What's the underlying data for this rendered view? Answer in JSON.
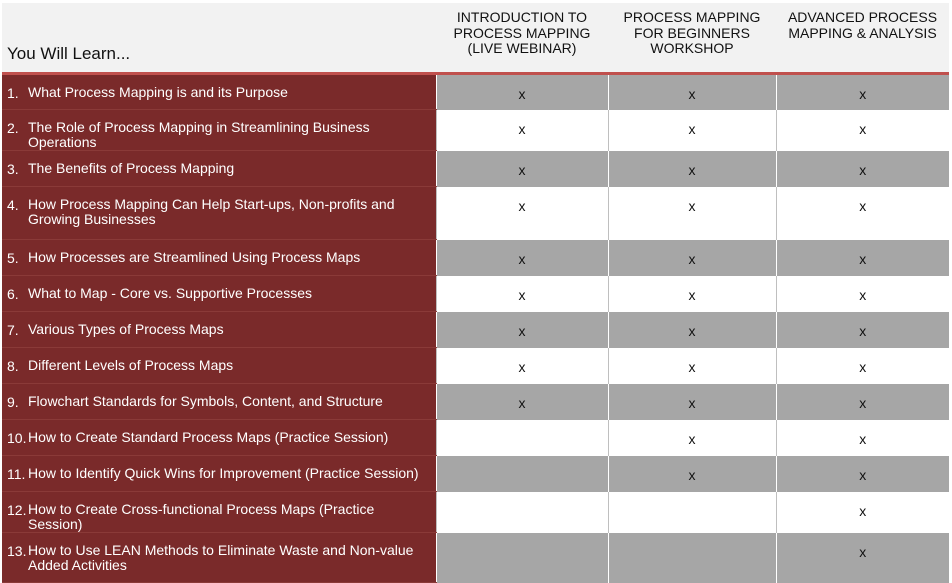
{
  "header": {
    "lead": "You Will Learn...",
    "courses": [
      [
        "INTRODUCTION TO",
        "PROCESS MAPPING",
        "(LIVE WEBINAR)"
      ],
      [
        "PROCESS MAPPING",
        "FOR BEGINNERS",
        "WORKSHOP"
      ],
      [
        "ADVANCED PROCESS",
        "MAPPING & ANALYSIS"
      ]
    ]
  },
  "rows": [
    {
      "num": "1.",
      "lines": [
        "What Process Mapping is and its Purpose"
      ],
      "marks": [
        "x",
        "x",
        "x"
      ]
    },
    {
      "num": "2.",
      "lines": [
        "The Role of Process Mapping in Streamlining Business Operations"
      ],
      "marks": [
        "x",
        "x",
        "x"
      ]
    },
    {
      "num": "3.",
      "lines": [
        "The Benefits of Process Mapping"
      ],
      "marks": [
        "x",
        "x",
        "x"
      ]
    },
    {
      "num": "4.",
      "lines": [
        "How Process Mapping Can Help Start-ups, Non-profits and",
        "Growing Businesses"
      ],
      "marks": [
        "x",
        "x",
        "x"
      ]
    },
    {
      "num": "5.",
      "lines": [
        "How Processes are Streamlined Using Process Maps"
      ],
      "marks": [
        "x",
        "x",
        "x"
      ]
    },
    {
      "num": "6.",
      "lines": [
        "What to Map - Core vs. Supportive Processes"
      ],
      "marks": [
        "x",
        "x",
        "x"
      ]
    },
    {
      "num": "7.",
      "lines": [
        "Various Types of Process Maps"
      ],
      "marks": [
        "x",
        "x",
        "x"
      ]
    },
    {
      "num": "8.",
      "lines": [
        "Different Levels of Process Maps"
      ],
      "marks": [
        "x",
        "x",
        "x"
      ]
    },
    {
      "num": "9.",
      "lines": [
        "Flowchart Standards for Symbols, Content, and Structure"
      ],
      "marks": [
        "x",
        "x",
        "x"
      ]
    },
    {
      "num": "10.",
      "lines": [
        "How to Create Standard Process Maps (Practice Session)"
      ],
      "marks": [
        "",
        "x",
        "x"
      ]
    },
    {
      "num": "11.",
      "lines": [
        "How to Identify Quick Wins for Improvement (Practice Session)"
      ],
      "marks": [
        "",
        "x",
        "x"
      ]
    },
    {
      "num": "12.",
      "lines": [
        "How to Create Cross-functional Process Maps (Practice Session)"
      ],
      "marks": [
        "",
        "",
        "x"
      ]
    },
    {
      "num": "13.",
      "lines": [
        "How to Use LEAN Methods to Eliminate Waste and Non-value",
        "Added Activities"
      ],
      "marks": [
        "",
        "",
        "x"
      ]
    }
  ],
  "colors": {
    "topic_bg": "#7a2a2a",
    "header_bg": "#f2f2f2",
    "shade": "#a6a6a6",
    "accent_line": "#c0504d"
  }
}
